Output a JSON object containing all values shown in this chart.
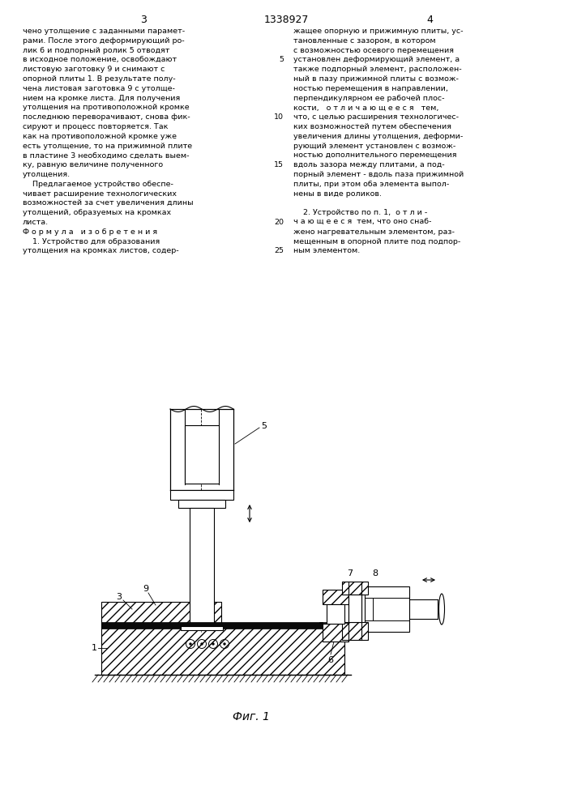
{
  "page_width": 7.07,
  "page_height": 10.0,
  "bg_color": "#ffffff",
  "text_color": "#000000",
  "line_color": "#000000",
  "header": {
    "left_num": "3",
    "center_num": "1338927",
    "right_num": "4"
  },
  "col1_text": [
    "чено утолщение с заданными парамет-",
    "рами. После этого деформирующий ро-",
    "лик 6 и подпорный ролик 5 отводят",
    "в исходное положение, освобождают",
    "листовую заготовку 9 и снимают с",
    "опорной плиты 1. В результате полу-",
    "чена листовая заготовка 9 с утолще-",
    "нием на кромке листа. Для получения",
    "утолщения на противоположной кромке",
    "последнюю переворачивают, снова фик-",
    "сируют и процесс повторяется. Так",
    "как на противоположной кромке уже",
    "есть утолщение, то на прижимной плите",
    "в пластине 3 необходимо сделать выем-",
    "ку, равную величине полученного",
    "утолщения.",
    "    Предлагаемое устройство обеспе-",
    "чивает расширение технологических",
    "возможностей за счет увеличения длины",
    "утолщений, образуемых на кромках",
    "листа.",
    "Ф о р м у л а   и з о б р е т е н и я",
    "    1. Устройство для образования",
    "утолщения на кромках листов, содер-"
  ],
  "col2_text_numbered": [
    [
      "",
      "жащее опорную и прижимную плиты, ус-"
    ],
    [
      "",
      "тановленные с зазором, в котором"
    ],
    [
      "",
      "с возможностью осевого перемещения"
    ],
    [
      "5",
      "установлен деформирующий элемент, а"
    ],
    [
      "",
      "также подпорный элемент, расположен-"
    ],
    [
      "",
      "ный в пазу прижимной плиты с возмож-"
    ],
    [
      "",
      "ностью перемещения в направлении,"
    ],
    [
      "",
      "перпендикулярном ее рабочей плос-"
    ],
    [
      "",
      "кости,   о т л и ч а ю щ е е с я   тем,"
    ],
    [
      "10",
      "что, с целью расширения технологичес-"
    ],
    [
      "",
      "ких возможностей путем обеспечения"
    ],
    [
      "",
      "увеличения длины утолщения, деформи-"
    ],
    [
      "",
      "рующий элемент установлен с возмож-"
    ],
    [
      "",
      "ностью дополнительного перемещения"
    ],
    [
      "15",
      "вдоль зазора между плитами, а под-"
    ],
    [
      "",
      "порный элемент - вдоль паза прижимной"
    ],
    [
      "",
      "плиты, при этом оба элемента выпол-"
    ],
    [
      "",
      "нены в виде роликов."
    ],
    [
      "",
      ""
    ],
    [
      "",
      "    2. Устройство по п. 1,  о т л и -"
    ],
    [
      "20",
      "ч а ю щ е е с я  тем, что оно снаб-"
    ],
    [
      "",
      "жено нагревательным элементом, раз-"
    ],
    [
      "",
      "мещенным в опорной плите под подпор-"
    ],
    [
      "25",
      "ным элементом."
    ]
  ],
  "fig_caption": "Фиг. 1"
}
